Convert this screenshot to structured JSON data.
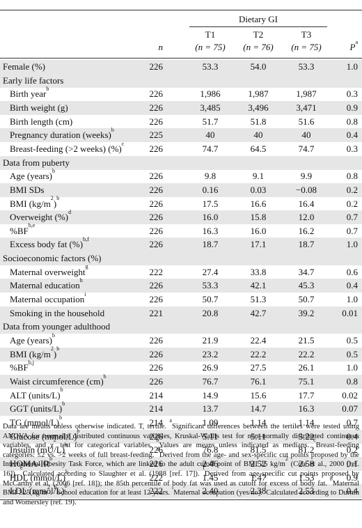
{
  "header": {
    "group_label": "Dietary GI",
    "n_label": "n",
    "p_label": "P",
    "p_sup": "a",
    "tertiles": [
      {
        "name": "T1",
        "n": "(n = 75)"
      },
      {
        "name": "T2",
        "n": "(n = 76)"
      },
      {
        "name": "T3",
        "n": "(n = 75)"
      }
    ]
  },
  "rows": [
    {
      "label": "Female (%)",
      "sup": "",
      "section": false,
      "n": "226",
      "t1": "53.3",
      "t2": "54.0",
      "t3": "53.3",
      "p": "1.0"
    },
    {
      "label": "Early life factors",
      "sup": "",
      "section": true
    },
    {
      "label": "Birth year",
      "sup": "b",
      "section": false,
      "n": "226",
      "t1": "1,986",
      "t2": "1,987",
      "t3": "1,987",
      "p": "0.3"
    },
    {
      "label": "Birth weight (g)",
      "sup": "",
      "section": false,
      "n": "226",
      "t1": "3,485",
      "t2": "3,496",
      "t3": "3,471",
      "p": "0.9"
    },
    {
      "label": "Birth length (cm)",
      "sup": "",
      "section": false,
      "n": "226",
      "t1": "51.7",
      "t2": "51.8",
      "t3": "51.6",
      "p": "0.8"
    },
    {
      "label": "Pregnancy duration (weeks)",
      "sup": "b",
      "section": false,
      "n": "225",
      "t1": "40",
      "t2": "40",
      "t3": "40",
      "p": "0.4"
    },
    {
      "label": "Breast-feeding (>2 weeks) (%)",
      "sup": "c",
      "section": false,
      "n": "226",
      "t1": "74.7",
      "t2": "64.5",
      "t3": "74.7",
      "p": "0.3"
    },
    {
      "label": "Data from puberty",
      "sup": "",
      "section": true
    },
    {
      "label": "Age (years)",
      "sup": "b",
      "section": false,
      "n": "226",
      "t1": "9.8",
      "t2": "9.1",
      "t3": "9.9",
      "p": "0.8"
    },
    {
      "label": "BMI SDs",
      "sup": "",
      "section": false,
      "n": "226",
      "t1": "0.16",
      "t2": "0.03",
      "t3": "−0.08",
      "p": "0.2"
    },
    {
      "label": "BMI (kg/m2)",
      "sup": "b",
      "section": false,
      "n": "226",
      "t1": "17.5",
      "t2": "16.6",
      "t3": "16.4",
      "p": "0.2"
    },
    {
      "label": "Overweight (%)",
      "sup": "d",
      "section": false,
      "n": "226",
      "t1": "16.0",
      "t2": "15.8",
      "t3": "12.0",
      "p": "0.7"
    },
    {
      "label": "%BF",
      "sup": "b,e",
      "section": false,
      "n": "226",
      "t1": "16.3",
      "t2": "16.0",
      "t3": "16.2",
      "p": "0.7"
    },
    {
      "label": "Excess body fat (%)",
      "sup": "b,f",
      "section": false,
      "n": "226",
      "t1": "18.7",
      "t2": "17.1",
      "t3": "18.7",
      "p": "1.0"
    },
    {
      "label": "Socioeconomic factors (%)",
      "sup": "",
      "section": true
    },
    {
      "label": "Maternal overweight",
      "sup": "g",
      "section": false,
      "n": "222",
      "t1": "27.4",
      "t2": "33.8",
      "t3": "34.7",
      "p": "0.6"
    },
    {
      "label": "Maternal education",
      "sup": "h",
      "section": false,
      "n": "226",
      "t1": "53.3",
      "t2": "42.1",
      "t3": "45.3",
      "p": "0.4"
    },
    {
      "label": "Maternal occupation",
      "sup": "i",
      "section": false,
      "n": "226",
      "t1": "50.7",
      "t2": "51.3",
      "t3": "50.7",
      "p": "1.0"
    },
    {
      "label": "Smoking in the household",
      "sup": "",
      "section": false,
      "n": "221",
      "t1": "20.8",
      "t2": "42.7",
      "t3": "39.2",
      "p": "0.01"
    },
    {
      "label": "Data from younger adulthood",
      "sup": "",
      "section": true
    },
    {
      "label": "Age (years)",
      "sup": "b",
      "section": false,
      "n": "226",
      "t1": "21.9",
      "t2": "22.4",
      "t3": "21.5",
      "p": "0.5"
    },
    {
      "label": "BMI (kg/m2)",
      "sup": "b",
      "section": false,
      "n": "226",
      "t1": "23.2",
      "t2": "22.2",
      "t3": "22.2",
      "p": "0.5"
    },
    {
      "label": "%BF",
      "sup": "b,j",
      "section": false,
      "n": "226",
      "t1": "26.9",
      "t2": "27.5",
      "t3": "26.1",
      "p": "1.0"
    },
    {
      "label": "Waist circumference (cm)",
      "sup": "b",
      "section": false,
      "n": "226",
      "t1": "76.7",
      "t2": "76.1",
      "t3": "75.1",
      "p": "0.8"
    },
    {
      "label": "ALT (units/L)",
      "sup": "b",
      "section": false,
      "n": "214",
      "t1": "14.9",
      "t2": "15.6",
      "t3": "17.7",
      "p": "0.02"
    },
    {
      "label": "GGT (units/L)",
      "sup": "b",
      "section": false,
      "n": "214",
      "t1": "13.7",
      "t2": "14.7",
      "t3": "16.3",
      "p": "0.07"
    },
    {
      "label": "TG (mmol/L)",
      "sup": "b",
      "section": false,
      "n": "214",
      "t1": "1.09",
      "t2": "1.14",
      "t3": "1.14",
      "p": "0.7"
    },
    {
      "label": "Glucose (mmol/L)",
      "sup": "b",
      "section": false,
      "n": "226",
      "t1": "5.11",
      "t2": "5.11",
      "t3": "5.22",
      "p": "0.4"
    },
    {
      "label": "Insulin (mU/L)",
      "sup": "b",
      "section": false,
      "n": "226",
      "t1": "76.8",
      "t2": "81.5",
      "t3": "81.2",
      "p": "0.2"
    },
    {
      "label": "HOMA-IR",
      "sup": "b",
      "section": false,
      "n": "226",
      "t1": "2.46",
      "t2": "2.52",
      "t3": "2.58",
      "p": "0.1"
    },
    {
      "label": "HDL (mmol/L)",
      "sup": "b",
      "section": false,
      "n": "222",
      "t1": "1.45",
      "t2": "1.47",
      "t3": "1.53",
      "p": "0.9"
    },
    {
      "label": "LDL (mmol/L)",
      "sup": "b",
      "section": false,
      "n": "222",
      "t1": "2.40",
      "t2": "2.38",
      "t3": "2.53",
      "p": "0.4"
    }
  ],
  "notes": "Data are means unless otherwise indicated. T, tertile. aSignificant differences between the tertiles were tested using ANOVA for normally distributed continuous variables, Kruskal-Wallis test for non–normally distributed continuous variables, and χ2 test for categorical variables. bValues are means unless indicated as medians. cBreast-feeding categories: ≤2 vs. >2 weeks of full breast-feeding. dDerived from the age- and sex-specific cut points proposed by the International Obesity Task Force, which are linked to the adult cutoff point of BMI 25 kg/m2 (Cole et al., 2000 [ref. 16]). eCalculated according to Slaughter et al. (1988 [ref. 17]). fDerived from age-specific cut points proposed by McCarthy et al. (2006 [ref. 18]); the 85th percentile of body fat was used as cutoff for excess of body fat. gMaternal BMI ≥25 kg/m2. hSchool education for at least 12 years. iMaternal occupation (yes/no). jCalculated according to Durnin and Womersley (ref. 19)."
}
